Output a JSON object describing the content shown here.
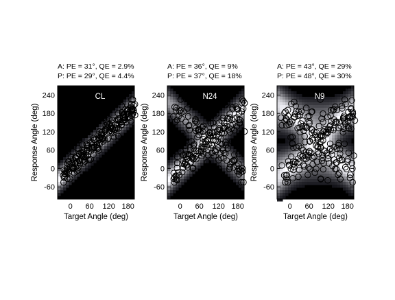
{
  "chart_data": [
    {
      "type": "scatter",
      "panel_label": "CL",
      "stats": [
        "A: PE = 31°, QE = 2.9%",
        "P: PE = 29°, QE = 4.4%"
      ],
      "xlabel": "Target Angle (deg)",
      "ylabel": "Response Angle (deg)",
      "xlim": [
        -40,
        200
      ],
      "ylim": [
        -100,
        270
      ],
      "xticks": [
        0,
        60,
        120,
        180
      ],
      "yticks": [
        -60,
        0,
        60,
        120,
        180,
        240
      ],
      "grid": false,
      "background": "density heatmap (white = high response density)",
      "density_bands": [
        {
          "slope": 1.0,
          "offset": 0,
          "weight": 1.0,
          "width": 30
        }
      ],
      "noise": {
        "diagonal": 32,
        "far": 0,
        "far_frac": 0.06
      },
      "points_per_target": 4,
      "point_x_range": [
        -20,
        200
      ]
    },
    {
      "type": "scatter",
      "panel_label": "N24",
      "stats": [
        "A: PE = 36°, QE = 9%",
        "P: PE = 37°, QE = 18%"
      ],
      "xlabel": "Target Angle (deg)",
      "ylabel": "Response Angle (deg)",
      "xlim": [
        -40,
        200
      ],
      "ylim": [
        -100,
        270
      ],
      "xticks": [
        0,
        60,
        120,
        180
      ],
      "yticks": [
        -60,
        0,
        60,
        120,
        180,
        240
      ],
      "grid": false,
      "background": "density heatmap (white = high response density)",
      "density_bands": [
        {
          "slope": 1.0,
          "offset": 0,
          "weight": 1.0,
          "width": 34
        },
        {
          "slope": -1.0,
          "offset": 180,
          "weight": 0.55,
          "width": 34
        }
      ],
      "noise": {
        "diagonal": 38,
        "far": 0,
        "far_frac": 0.18
      },
      "points_per_target": 4,
      "point_x_range": [
        -20,
        200
      ]
    },
    {
      "type": "scatter",
      "panel_label": "N9",
      "stats": [
        "A: PE = 43°, QE = 29%",
        "P: PE = 48°, QE = 30%"
      ],
      "xlabel": "Target Angle (deg)",
      "ylabel": "Response Angle (deg)",
      "xlim": [
        -40,
        200
      ],
      "ylim": [
        -100,
        270
      ],
      "xticks": [
        0,
        60,
        120,
        180
      ],
      "yticks": [
        -60,
        0,
        60,
        120,
        180,
        240
      ],
      "grid": false,
      "background": "density heatmap (white = high response density)",
      "density_bands": [
        {
          "slope": 1.0,
          "offset": 0,
          "weight": 0.7,
          "width": 45
        },
        {
          "slope": -1.0,
          "offset": 180,
          "weight": 0.7,
          "width": 45
        },
        {
          "slope": 0.0,
          "offset": 10,
          "weight": 0.35,
          "width": 45
        },
        {
          "slope": 0.0,
          "offset": 170,
          "weight": 0.35,
          "width": 45
        }
      ],
      "noise": {
        "diagonal": 44,
        "far": 0,
        "far_frac": 0.3
      },
      "points_per_target": 4,
      "point_x_range": [
        -20,
        200
      ]
    }
  ]
}
